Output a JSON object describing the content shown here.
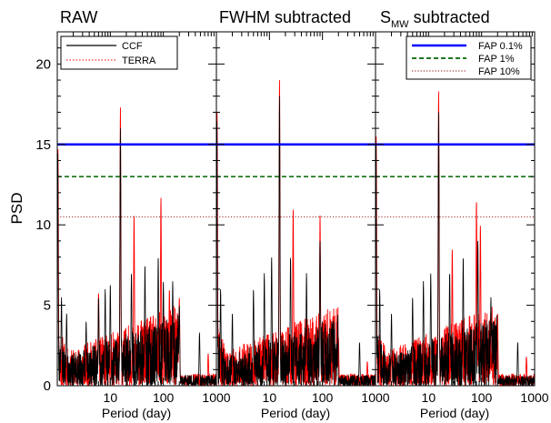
{
  "figure": {
    "ylabel": "PSD",
    "xlabel": "Period (day)",
    "x_scale": "log",
    "xlim": [
      1,
      1000
    ],
    "ylim": [
      0,
      22
    ],
    "y_ticks": [
      0,
      5,
      10,
      15,
      20
    ],
    "x_ticks": [
      10,
      100,
      1000
    ],
    "colors": {
      "ccf": "#000000",
      "terra": "#ff0000",
      "fap01": "#0000ff",
      "fap1": "#006400",
      "fap10": "#8b0000"
    }
  },
  "legend_ccf": {
    "position": "top-left of first panel",
    "items": [
      {
        "label": "CCF",
        "style": "solid",
        "color": "#000000"
      },
      {
        "label": "TERRA",
        "style": "dotted",
        "color": "#ff0000"
      }
    ]
  },
  "legend_fap": {
    "position": "top-right of third panel",
    "items": [
      {
        "label": "FAP 0.1%",
        "style": "solid-thick",
        "color": "#0000ff"
      },
      {
        "label": "FAP 1%",
        "style": "dashed",
        "color": "#006400"
      },
      {
        "label": "FAP 10%",
        "style": "dotted",
        "color": "#8b0000"
      }
    ]
  },
  "panels": [
    {
      "title": "RAW",
      "title_sub": "",
      "title_suffix": ""
    },
    {
      "title": "FWHM subtracted",
      "title_sub": "",
      "title_suffix": ""
    },
    {
      "title": "S",
      "title_sub": "MW",
      "title_suffix": " subtracted"
    }
  ],
  "chart_data": [
    {
      "type": "line",
      "title": "RAW",
      "ylabel": "PSD",
      "xlabel": "Period (day)",
      "xlim": [
        1,
        1000
      ],
      "ylim": [
        0,
        22
      ],
      "x_scale": "log",
      "fap_levels": [
        {
          "name": "FAP 0.1%",
          "value": 15.0
        },
        {
          "name": "FAP 1%",
          "value": 13.0
        },
        {
          "name": "FAP 10%",
          "value": 10.5
        }
      ],
      "series": [
        {
          "name": "CCF",
          "peaks": [
            {
              "x": 1.02,
              "y": 14.5
            },
            {
              "x": 1.2,
              "y": 5.5
            },
            {
              "x": 1.5,
              "y": 4.5
            },
            {
              "x": 3.5,
              "y": 4.0
            },
            {
              "x": 6.0,
              "y": 5.5
            },
            {
              "x": 8.0,
              "y": 6.0
            },
            {
              "x": 10.0,
              "y": 6.3
            },
            {
              "x": 15.5,
              "y": 16.0
            },
            {
              "x": 25.0,
              "y": 7.0
            },
            {
              "x": 45.0,
              "y": 7.5
            },
            {
              "x": 80.0,
              "y": 8.0
            },
            {
              "x": 100.0,
              "y": 6.5
            },
            {
              "x": 150.0,
              "y": 6.5
            },
            {
              "x": 200.0,
              "y": 5.0
            },
            {
              "x": 480.0,
              "y": 3.3
            }
          ]
        },
        {
          "name": "TERRA",
          "peaks": [
            {
              "x": 1.03,
              "y": 14.7
            },
            {
              "x": 6.0,
              "y": 5.8
            },
            {
              "x": 15.5,
              "y": 17.3
            },
            {
              "x": 28.0,
              "y": 10.6
            },
            {
              "x": 90.0,
              "y": 11.7
            },
            {
              "x": 130.0,
              "y": 6.0
            },
            {
              "x": 200.0,
              "y": 5.5
            },
            {
              "x": 700.0,
              "y": 2.0
            }
          ]
        }
      ]
    },
    {
      "type": "line",
      "title": "FWHM subtracted",
      "ylabel": "PSD",
      "xlabel": "Period (day)",
      "xlim": [
        1,
        1000
      ],
      "ylim": [
        0,
        22
      ],
      "x_scale": "log",
      "fap_levels": [
        {
          "name": "FAP 0.1%",
          "value": 15.0
        },
        {
          "name": "FAP 1%",
          "value": 13.0
        },
        {
          "name": "FAP 10%",
          "value": 10.5
        }
      ],
      "series": [
        {
          "name": "CCF",
          "peaks": [
            {
              "x": 1.02,
              "y": 16.5
            },
            {
              "x": 1.2,
              "y": 6.0
            },
            {
              "x": 2.0,
              "y": 4.5
            },
            {
              "x": 5.0,
              "y": 6.0
            },
            {
              "x": 8.0,
              "y": 7.0
            },
            {
              "x": 11.0,
              "y": 8.0
            },
            {
              "x": 15.5,
              "y": 18.0
            },
            {
              "x": 25.0,
              "y": 8.0
            },
            {
              "x": 50.0,
              "y": 7.0
            },
            {
              "x": 90.0,
              "y": 9.0
            },
            {
              "x": 150.0,
              "y": 4.0
            },
            {
              "x": 500.0,
              "y": 2.7
            }
          ]
        },
        {
          "name": "TERRA",
          "peaks": [
            {
              "x": 1.03,
              "y": 17.0
            },
            {
              "x": 15.5,
              "y": 19.0
            },
            {
              "x": 28.0,
              "y": 11.0
            },
            {
              "x": 90.0,
              "y": 10.6
            },
            {
              "x": 200.0,
              "y": 3.0
            },
            {
              "x": 700.0,
              "y": 1.5
            }
          ]
        }
      ]
    },
    {
      "type": "line",
      "title": "SMW subtracted",
      "ylabel": "PSD",
      "xlabel": "Period (day)",
      "xlim": [
        1,
        1000
      ],
      "ylim": [
        0,
        22
      ],
      "x_scale": "log",
      "fap_levels": [
        {
          "name": "FAP 0.1%",
          "value": 15.0
        },
        {
          "name": "FAP 1%",
          "value": 13.0
        },
        {
          "name": "FAP 10%",
          "value": 10.5
        }
      ],
      "series": [
        {
          "name": "CCF",
          "peaks": [
            {
              "x": 1.02,
              "y": 15.0
            },
            {
              "x": 1.2,
              "y": 6.0
            },
            {
              "x": 2.0,
              "y": 4.5
            },
            {
              "x": 5.0,
              "y": 5.5
            },
            {
              "x": 8.0,
              "y": 6.5
            },
            {
              "x": 11.0,
              "y": 7.0
            },
            {
              "x": 15.5,
              "y": 17.0
            },
            {
              "x": 25.0,
              "y": 7.0
            },
            {
              "x": 45.0,
              "y": 8.0
            },
            {
              "x": 85.0,
              "y": 9.0
            },
            {
              "x": 150.0,
              "y": 5.5
            },
            {
              "x": 480.0,
              "y": 2.7
            }
          ]
        },
        {
          "name": "TERRA",
          "peaks": [
            {
              "x": 1.03,
              "y": 15.5
            },
            {
              "x": 15.5,
              "y": 18.3
            },
            {
              "x": 28.0,
              "y": 8.5
            },
            {
              "x": 80.0,
              "y": 11.5
            },
            {
              "x": 95.0,
              "y": 10.0
            },
            {
              "x": 200.0,
              "y": 4.5
            },
            {
              "x": 700.0,
              "y": 1.8
            }
          ]
        }
      ]
    }
  ]
}
